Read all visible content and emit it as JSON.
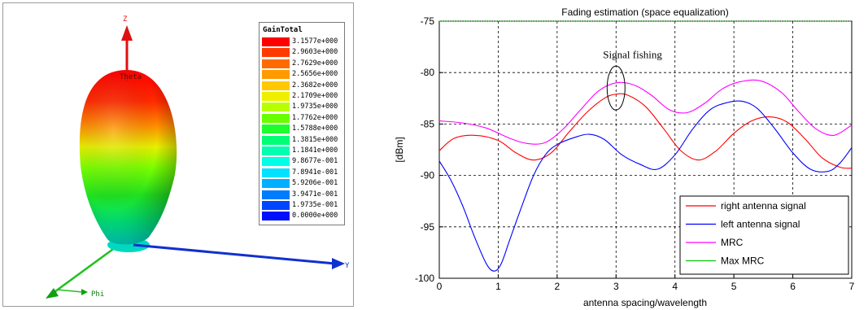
{
  "left_plot": {
    "axis_labels": {
      "z": "Z",
      "y": "Y",
      "phi": "Phi",
      "theta": "Theta"
    },
    "legend": {
      "title": "GainTotal",
      "entries": [
        {
          "value": "3.1577e+000",
          "color": "#ff0000"
        },
        {
          "value": "2.9603e+000",
          "color": "#ff3a00"
        },
        {
          "value": "2.7629e+000",
          "color": "#ff6a00"
        },
        {
          "value": "2.5656e+000",
          "color": "#ff9a00"
        },
        {
          "value": "2.3682e+000",
          "color": "#ffc800"
        },
        {
          "value": "2.1709e+000",
          "color": "#eef000"
        },
        {
          "value": "1.9735e+000",
          "color": "#b8ff00"
        },
        {
          "value": "1.7762e+000",
          "color": "#6aff00"
        },
        {
          "value": "1.5788e+000",
          "color": "#1cff2a"
        },
        {
          "value": "1.3815e+000",
          "color": "#00ff74"
        },
        {
          "value": "1.1841e+000",
          "color": "#00ffb0"
        },
        {
          "value": "9.8677e-001",
          "color": "#00ffe4"
        },
        {
          "value": "7.8941e-001",
          "color": "#00e2ff"
        },
        {
          "value": "5.9206e-001",
          "color": "#00b0ff"
        },
        {
          "value": "3.9471e-001",
          "color": "#007cff"
        },
        {
          "value": "1.9735e-001",
          "color": "#0046ff"
        },
        {
          "value": "0.0000e+000",
          "color": "#0010ff"
        }
      ]
    }
  },
  "chart_data": {
    "type": "line",
    "title": "Fading estimation (space equalization)",
    "xlabel": "antenna spacing/wavelength",
    "ylabel": "[dBm]",
    "xlim": [
      0,
      7
    ],
    "ylim": [
      -100,
      -75
    ],
    "xticks": [
      0,
      1,
      2,
      3,
      4,
      5,
      6,
      7
    ],
    "yticks": [
      -100,
      -95,
      -90,
      -85,
      -80,
      -75
    ],
    "grid": true,
    "legend_position": "bottom-right",
    "annotation": {
      "text": "Signal fishing",
      "x": 3.0,
      "y": -81.5
    },
    "series": [
      {
        "name": "right antenna signal",
        "color": "#ff0000",
        "x": [
          0,
          0.25,
          0.6,
          1.0,
          1.3,
          1.6,
          1.9,
          2.2,
          2.5,
          2.8,
          3.0,
          3.2,
          3.5,
          3.8,
          4.1,
          4.4,
          4.7,
          5.0,
          5.3,
          5.6,
          5.9,
          6.2,
          6.5,
          6.8,
          7.0
        ],
        "y": [
          -87.6,
          -86.4,
          -86.1,
          -86.6,
          -87.8,
          -88.5,
          -87.8,
          -85.8,
          -83.9,
          -82.5,
          -82.1,
          -82.2,
          -83.3,
          -85.4,
          -87.6,
          -88.5,
          -87.6,
          -85.9,
          -84.7,
          -84.3,
          -84.8,
          -86.4,
          -88.3,
          -89.2,
          -89.3
        ]
      },
      {
        "name": "left antenna signal",
        "color": "#0000ff",
        "x": [
          0,
          0.2,
          0.4,
          0.6,
          0.8,
          0.93,
          1.05,
          1.2,
          1.4,
          1.6,
          1.8,
          2.0,
          2.3,
          2.55,
          2.8,
          3.1,
          3.4,
          3.7,
          4.0,
          4.3,
          4.6,
          4.9,
          5.15,
          5.4,
          5.7,
          6.0,
          6.3,
          6.6,
          6.8,
          7.0
        ],
        "y": [
          -88.6,
          -90.5,
          -93.0,
          -96.0,
          -98.6,
          -99.3,
          -98.6,
          -96.2,
          -93.0,
          -90.0,
          -88.0,
          -87.0,
          -86.3,
          -86.0,
          -86.5,
          -88.0,
          -88.9,
          -89.4,
          -88.0,
          -85.5,
          -83.6,
          -82.9,
          -82.8,
          -83.5,
          -85.5,
          -87.8,
          -89.4,
          -89.6,
          -88.8,
          -87.3
        ]
      },
      {
        "name": "MRC",
        "color": "#ff00ff",
        "x": [
          0,
          0.4,
          0.8,
          1.2,
          1.5,
          1.8,
          2.1,
          2.4,
          2.7,
          3.0,
          3.3,
          3.6,
          3.9,
          4.2,
          4.5,
          4.8,
          5.1,
          5.45,
          5.8,
          6.1,
          6.4,
          6.7,
          7.0
        ],
        "y": [
          -84.7,
          -84.9,
          -85.4,
          -86.4,
          -86.9,
          -86.8,
          -85.5,
          -83.6,
          -81.8,
          -81.0,
          -81.2,
          -82.2,
          -83.6,
          -83.9,
          -83.0,
          -81.6,
          -80.9,
          -80.8,
          -81.9,
          -83.8,
          -85.5,
          -86.1,
          -85.1
        ]
      },
      {
        "name": "Max MRC",
        "color": "#00cc00",
        "x": [
          0,
          7
        ],
        "y": [
          -75.0,
          -75.0
        ]
      }
    ]
  }
}
